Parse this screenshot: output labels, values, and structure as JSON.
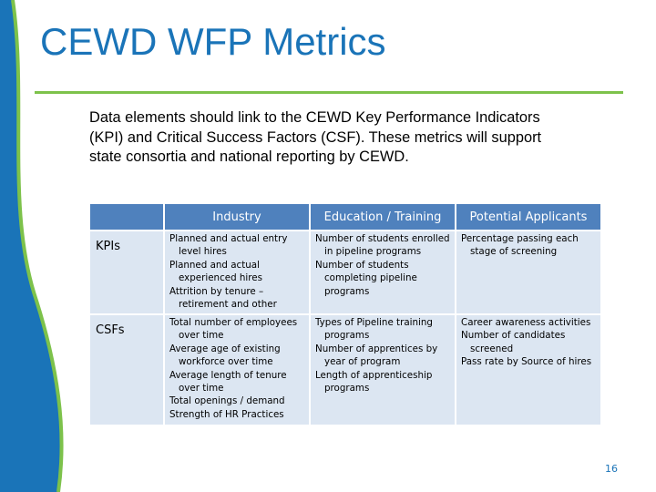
{
  "slide": {
    "title": "CEWD WFP Metrics",
    "body": "Data elements should link to the CEWD Key Performance Indicators (KPI) and Critical Success Factors (CSF). These metrics will support state consortia and national reporting by CEWD.",
    "page_number": "16"
  },
  "table": {
    "headers": [
      "",
      "Industry",
      "Education / Training",
      "Potential Applicants"
    ],
    "rows": [
      {
        "label": "KPIs",
        "cells": [
          [
            "Planned and actual entry level hires",
            "Planned and actual experienced hires",
            "Attrition by tenure – retirement and other"
          ],
          [
            "Number of students enrolled in pipeline programs",
            "Number of students completing pipeline programs"
          ],
          [
            "Percentage passing each stage of screening"
          ]
        ]
      },
      {
        "label": "CSFs",
        "cells": [
          [
            "Total number of employees over time",
            "Average age of existing workforce over time",
            "Average length of tenure over time",
            "Total openings / demand",
            "Strength of HR Practices"
          ],
          [
            "Types of Pipeline training programs",
            "Number of apprentices by year of program",
            "Length of apprenticeship programs"
          ],
          [
            "Career awareness activities",
            "Number of candidates screened",
            "Pass rate by Source of hires"
          ]
        ]
      }
    ]
  },
  "colors": {
    "title": "#1a74b8",
    "rule": "#7dc24b",
    "header_fill": "#4f81bd",
    "cell_fill": "#dce6f2",
    "deco_blue": "#1a74b8",
    "deco_green": "#7dc24b"
  }
}
